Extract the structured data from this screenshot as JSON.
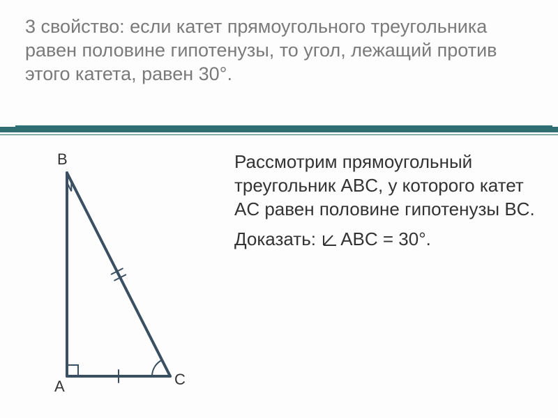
{
  "title": "3 свойство: если катет прямоугольного треугольника равен половине гипотенузы, то угол, лежащий против этого катета, равен 30°.",
  "diagram": {
    "label_B": "B",
    "label_A": "A",
    "label_C": "C",
    "stroke_color": "#3b4f63",
    "stroke_width": 4,
    "mark_color": "#3b4f63",
    "vertices": {
      "A": [
        60,
        330
      ],
      "B": [
        60,
        38
      ],
      "C": [
        208,
        330
      ]
    },
    "angle_marks": {
      "right_angle_A": true,
      "right_mark_B": true,
      "arc_C": true
    },
    "tick_marks": {
      "AC_single": true,
      "BC_double": true
    }
  },
  "paragraph1_parts": {
    "a": "Рассмотрим прямоугольный треугольник  ABC, у которого катет AC равен половине гипотенузы BC."
  },
  "paragraph2_parts": {
    "a": "Доказать:  ",
    "b": "ABC = 30°."
  },
  "colors": {
    "title": "#7a7a7a",
    "rule": "#2f6f73",
    "body": "#333333",
    "bg": "#ffffff"
  },
  "fonts": {
    "title_size": 27,
    "body_size": 26,
    "label_size": 22
  }
}
